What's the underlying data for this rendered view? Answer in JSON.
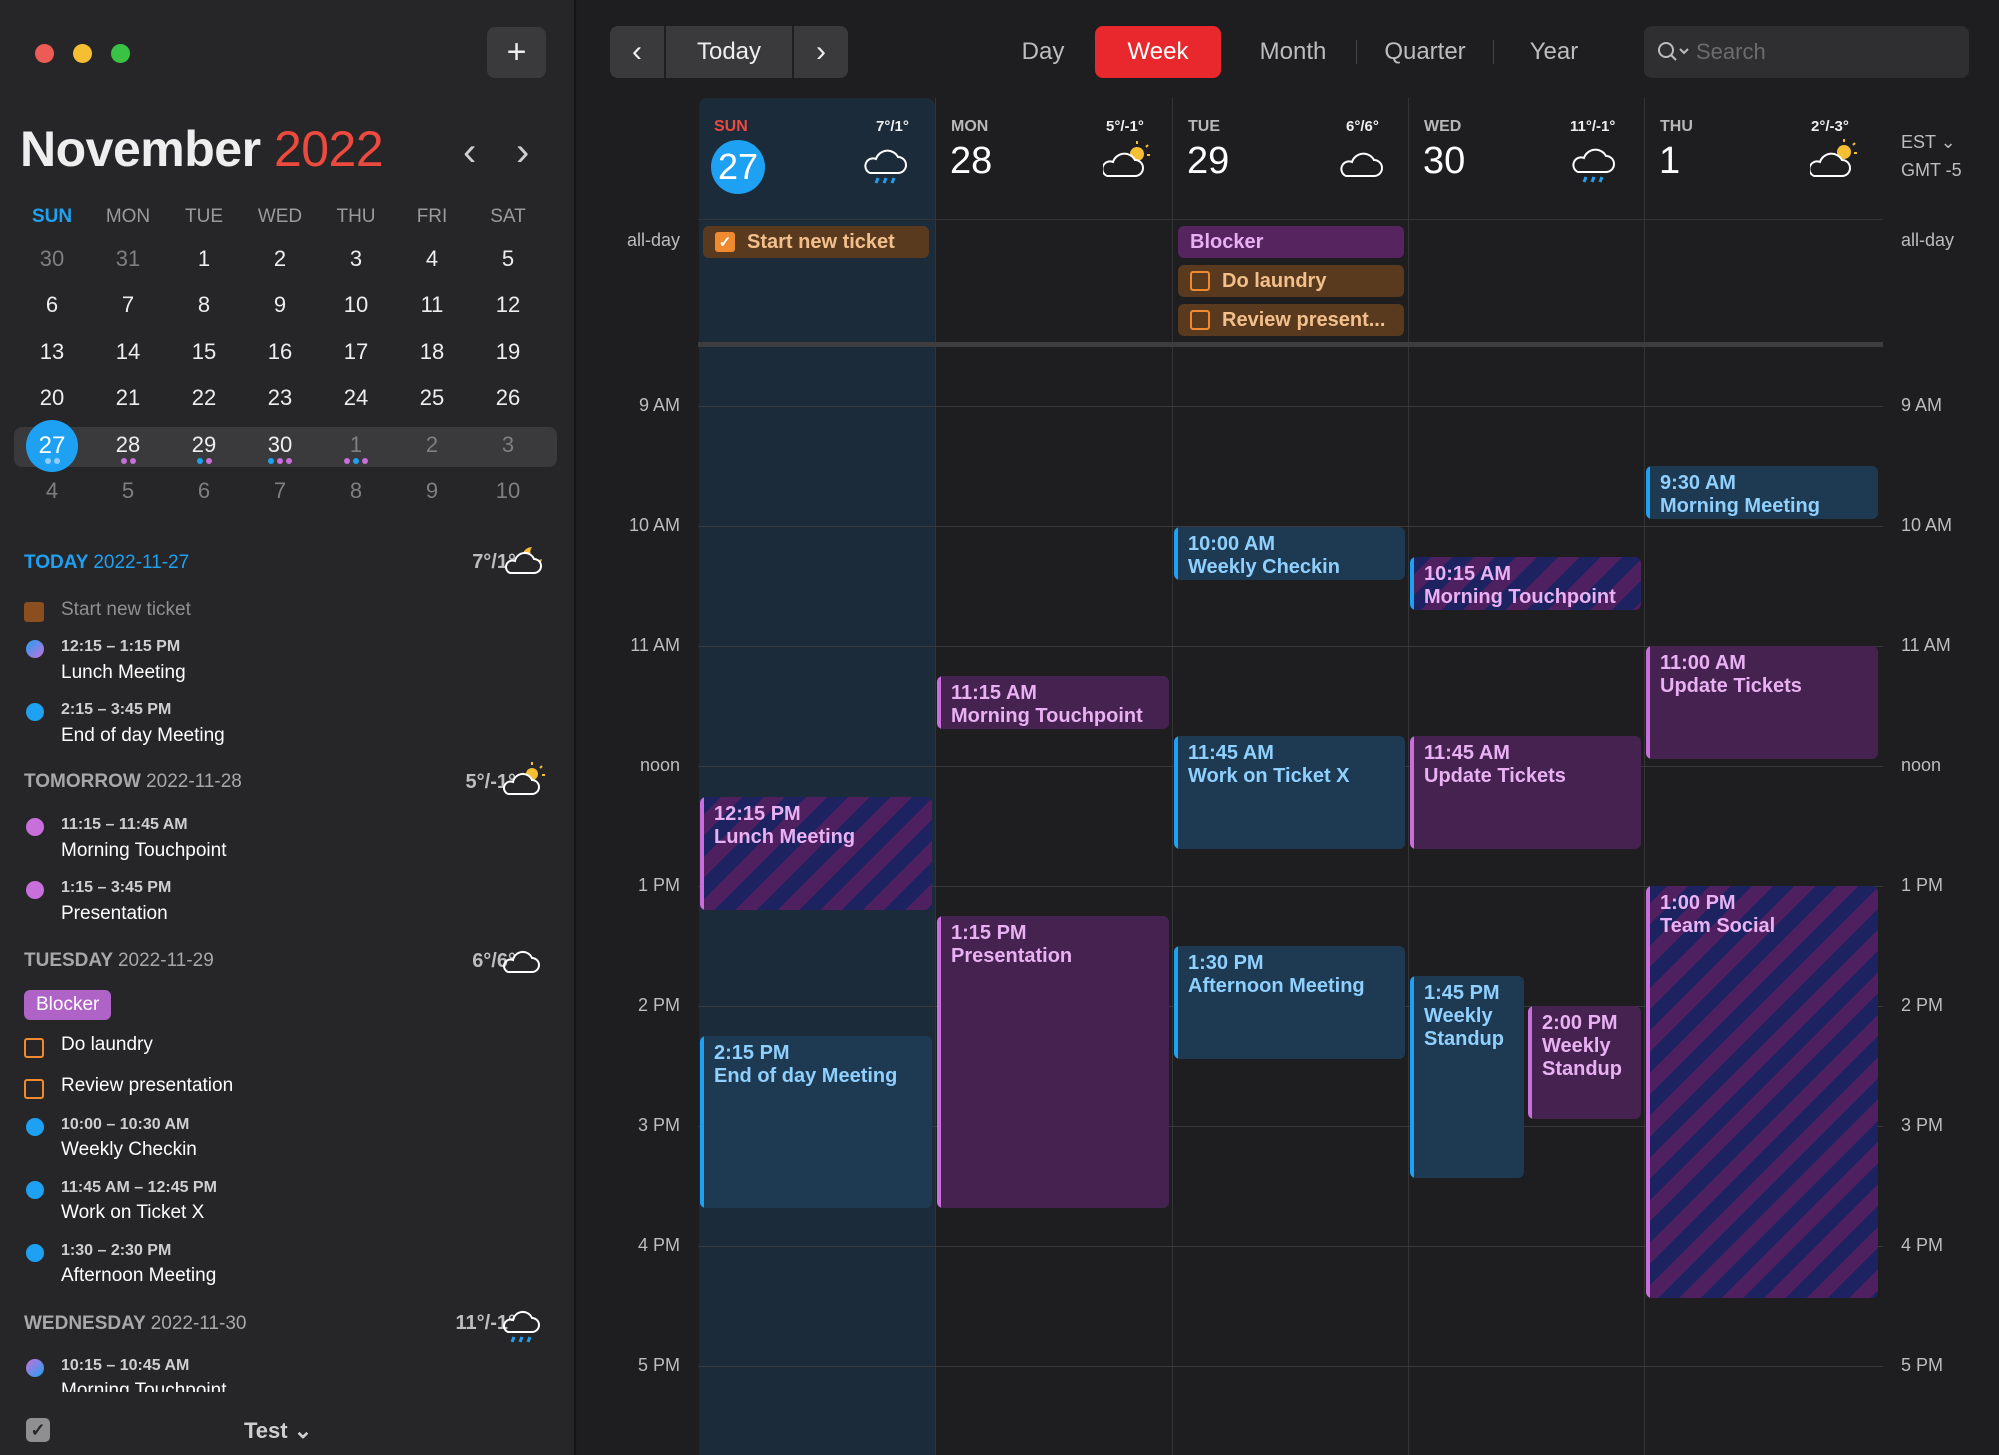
{
  "sidebar": {
    "add_label": "+",
    "month": "November",
    "year": "2022",
    "prev": "‹",
    "next": "›",
    "dows": [
      "SUN",
      "MON",
      "TUE",
      "WED",
      "THU",
      "FRI",
      "SAT"
    ],
    "weeks": [
      [
        "30",
        "31",
        "1",
        "2",
        "3",
        "4",
        "5"
      ],
      [
        "6",
        "7",
        "8",
        "9",
        "10",
        "11",
        "12"
      ],
      [
        "13",
        "14",
        "15",
        "16",
        "17",
        "18",
        "19"
      ],
      [
        "20",
        "21",
        "22",
        "23",
        "24",
        "25",
        "26"
      ],
      [
        "27",
        "28",
        "29",
        "30",
        "1",
        "2",
        "3"
      ],
      [
        "4",
        "5",
        "6",
        "7",
        "8",
        "9",
        "10"
      ]
    ],
    "agenda": {
      "today_label": "TODAY",
      "today_date": "2022-11-27",
      "today_weather": "7°/1°",
      "today_task": "Start new ticket",
      "e1_time": "12:15 – 1:15 PM",
      "e1_title": "Lunch Meeting",
      "e2_time": "2:15 – 3:45 PM",
      "e2_title": "End of day Meeting",
      "tom_label": "TOMORROW",
      "tom_date": "2022-11-28",
      "tom_weather": "5°/-1°",
      "e3_time": "11:15 – 11:45 AM",
      "e3_title": "Morning Touchpoint",
      "e4_time": "1:15 – 3:45 PM",
      "e4_title": "Presentation",
      "tue_label": "TUESDAY",
      "tue_date": "2022-11-29",
      "tue_weather": "6°/6°",
      "blocker": "Blocker",
      "task1": "Do laundry",
      "task2": "Review presentation",
      "e5_time": "10:00 – 10:30 AM",
      "e5_title": "Weekly Checkin",
      "e6_time": "11:45 AM – 12:45 PM",
      "e6_title": "Work on Ticket X",
      "e7_time": "1:30 – 2:30 PM",
      "e7_title": "Afternoon Meeting",
      "wed_label": "WEDNESDAY",
      "wed_date": "2022-11-30",
      "wed_weather": "11°/-1°",
      "e8_time": "10:15 – 10:45 AM",
      "e8_title": "Morning Touchpoint"
    },
    "footer_calendar": "Test ⌄"
  },
  "toolbar": {
    "today": "Today",
    "views": [
      "Day",
      "Week",
      "Month",
      "Quarter",
      "Year"
    ],
    "active_view": "Week",
    "search_placeholder": "Search"
  },
  "week": {
    "days": [
      {
        "dow": "SUN",
        "num": "27",
        "weather": "7°/1°"
      },
      {
        "dow": "MON",
        "num": "28",
        "weather": "5°/-1°"
      },
      {
        "dow": "TUE",
        "num": "29",
        "weather": "6°/6°"
      },
      {
        "dow": "WED",
        "num": "30",
        "weather": "11°/-1°"
      },
      {
        "dow": "THU",
        "num": "1",
        "weather": "2°/-3°"
      }
    ],
    "tz": "EST ⌄",
    "tz_offset": "GMT -5",
    "allday_label": "all-day",
    "hours": [
      "9 AM",
      "10 AM",
      "11 AM",
      "noon",
      "1 PM",
      "2 PM",
      "3 PM",
      "4 PM",
      "5 PM"
    ],
    "allday": {
      "a1": "Start new ticket",
      "a2": "Blocker",
      "a3": "Do laundry",
      "a4": "Review present..."
    },
    "events": {
      "sun1": {
        "time": "12:15 PM",
        "title": "Lunch Meeting"
      },
      "sun2": {
        "time": "2:15 PM",
        "title": "End of day Meeting"
      },
      "mon1": {
        "time": "11:15 AM",
        "title": "Morning Touchpoint"
      },
      "mon2": {
        "time": "1:15 PM",
        "title": "Presentation"
      },
      "tue1": {
        "time": "10:00 AM",
        "title": "Weekly Checkin"
      },
      "tue2": {
        "time": "11:45 AM",
        "title": "Work on Ticket X"
      },
      "tue3": {
        "time": "1:30 PM",
        "title": "Afternoon Meeting"
      },
      "wed1": {
        "time": "10:15 AM",
        "title": "Morning Touchpoint"
      },
      "wed2": {
        "time": "11:45 AM",
        "title": "Update Tickets"
      },
      "wed3": {
        "time": "1:45 PM",
        "title": "Weekly",
        "title2": "Standup"
      },
      "wed4": {
        "time": "2:00 PM",
        "title": "Weekly",
        "title2": "Standup"
      },
      "thu1": {
        "time": "9:30 AM",
        "title": "Morning Meeting"
      },
      "thu2": {
        "time": "11:00 AM",
        "title": "Update Tickets"
      },
      "thu3": {
        "time": "1:00 PM",
        "title": "Team Social"
      }
    }
  },
  "colors": {
    "today": "#1ea1f2",
    "accent": "#e8282c",
    "purple": "#c86fdb",
    "orange": "#ef8a30"
  }
}
